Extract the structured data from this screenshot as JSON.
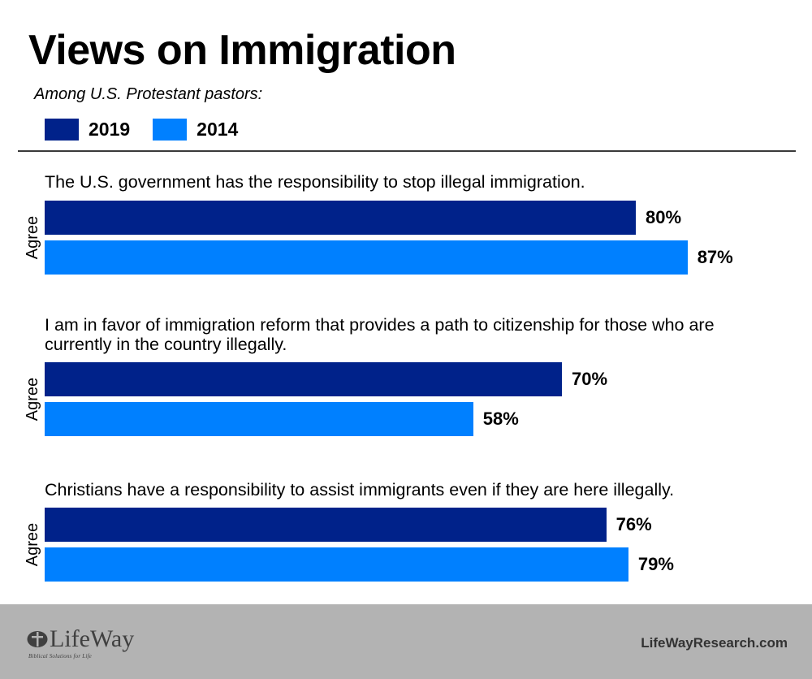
{
  "title": "Views on Immigration",
  "subtitle": "Among U.S. Protestant pastors:",
  "colors": {
    "y2019": "#00228a",
    "y2014": "#0080ff",
    "footer": "#b3b3b3"
  },
  "chart_data": {
    "type": "bar",
    "orientation": "horizontal",
    "title": "Views on Immigration",
    "subtitle": "Among U.S. Protestant pastors:",
    "xlabel": "",
    "ylabel": "Agree",
    "xlim": [
      0,
      100
    ],
    "legend": {
      "placement": "top-left",
      "entries": [
        "2019",
        "2014"
      ]
    },
    "categories": [
      "The U.S. government has the responsibility to stop illegal immigration.",
      "I am in favor of immigration reform that provides a path to citizenship for those who are currently in the country illegally.",
      "Christians have a responsibility to assist immigrants even if they are here illegally."
    ],
    "series": [
      {
        "name": "2019",
        "color": "#00228a",
        "values": [
          80,
          70,
          76
        ],
        "labels": [
          "80%",
          "70%",
          "76%"
        ]
      },
      {
        "name": "2014",
        "color": "#0080ff",
        "values": [
          87,
          58,
          79
        ],
        "labels": [
          "87%",
          "58%",
          "79%"
        ]
      }
    ],
    "group_label": "Agree"
  },
  "footer": {
    "logo_name": "LifeWay",
    "logo_tagline": "Biblical Solutions for Life",
    "site": "LifeWayResearch.com"
  }
}
